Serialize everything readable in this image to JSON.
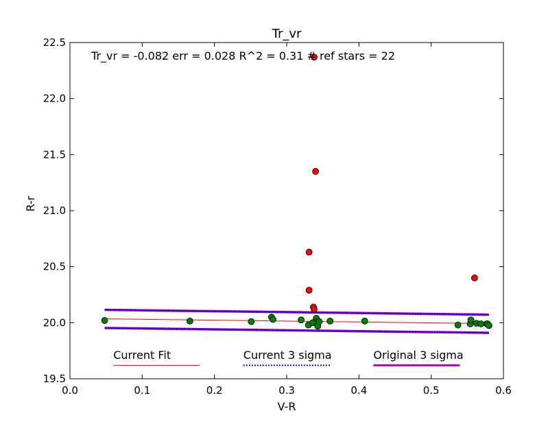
{
  "chart_data": {
    "type": "scatter",
    "title": "Tr_vr",
    "xlabel": "V-R",
    "ylabel": "R-r",
    "xlim": [
      0.0,
      0.6
    ],
    "ylim": [
      19.5,
      22.5
    ],
    "x_ticks": [
      "0.0",
      "0.1",
      "0.2",
      "0.3",
      "0.4",
      "0.5",
      "0.6"
    ],
    "y_ticks": [
      "19.5",
      "20.0",
      "20.5",
      "21.0",
      "21.5",
      "22.0",
      "22.5"
    ],
    "grid": false,
    "annotation": "Tr_vr =  -0.082 err = 0.028  R^2 = 0.31  # ref stars =  22",
    "series": [
      {
        "color": "#008000",
        "points": [
          [
            0.048,
            20.02
          ],
          [
            0.166,
            20.015
          ],
          [
            0.251,
            20.01
          ],
          [
            0.279,
            20.05
          ],
          [
            0.281,
            20.03
          ],
          [
            0.32,
            20.025
          ],
          [
            0.33,
            19.98
          ],
          [
            0.336,
            20.0
          ],
          [
            0.341,
            20.04
          ],
          [
            0.342,
            20.005
          ],
          [
            0.343,
            19.97
          ],
          [
            0.345,
            20.01
          ],
          [
            0.36,
            20.015
          ],
          [
            0.408,
            20.015
          ],
          [
            0.537,
            19.98
          ],
          [
            0.554,
            19.99
          ],
          [
            0.555,
            20.025
          ],
          [
            0.563,
            19.995
          ],
          [
            0.569,
            19.99
          ],
          [
            0.577,
            19.99
          ],
          [
            0.578,
            19.99
          ],
          [
            0.58,
            19.975
          ]
        ]
      },
      {
        "color": "#ff0000",
        "points": [
          [
            0.338,
            22.37
          ],
          [
            0.34,
            21.35
          ],
          [
            0.331,
            20.63
          ],
          [
            0.331,
            20.29
          ],
          [
            0.337,
            20.14
          ],
          [
            0.338,
            20.12
          ],
          [
            0.56,
            20.4
          ]
        ]
      }
    ],
    "lines": [
      {
        "color": "#ff0000",
        "points": [
          [
            0.048,
            20.035
          ],
          [
            0.58,
            19.992
          ]
        ]
      },
      {
        "color": "#8800cc",
        "points": [
          [
            0.048,
            20.115
          ],
          [
            0.58,
            20.072
          ]
        ]
      },
      {
        "color": "#8800cc",
        "points": [
          [
            0.048,
            19.953
          ],
          [
            0.58,
            19.91
          ]
        ]
      },
      {
        "color": "#0000cc",
        "points": [
          [
            0.048,
            20.115
          ],
          [
            0.58,
            20.072
          ]
        ]
      },
      {
        "color": "#0000cc",
        "points": [
          [
            0.048,
            19.953
          ],
          [
            0.58,
            19.91
          ]
        ]
      }
    ],
    "legend": [
      {
        "label": "Current Fit",
        "color": "#ff0000"
      },
      {
        "label": "Current 3 sigma",
        "color": "#0000cc"
      },
      {
        "label": "Original 3 sigma",
        "color": "#bb00bb"
      }
    ]
  }
}
